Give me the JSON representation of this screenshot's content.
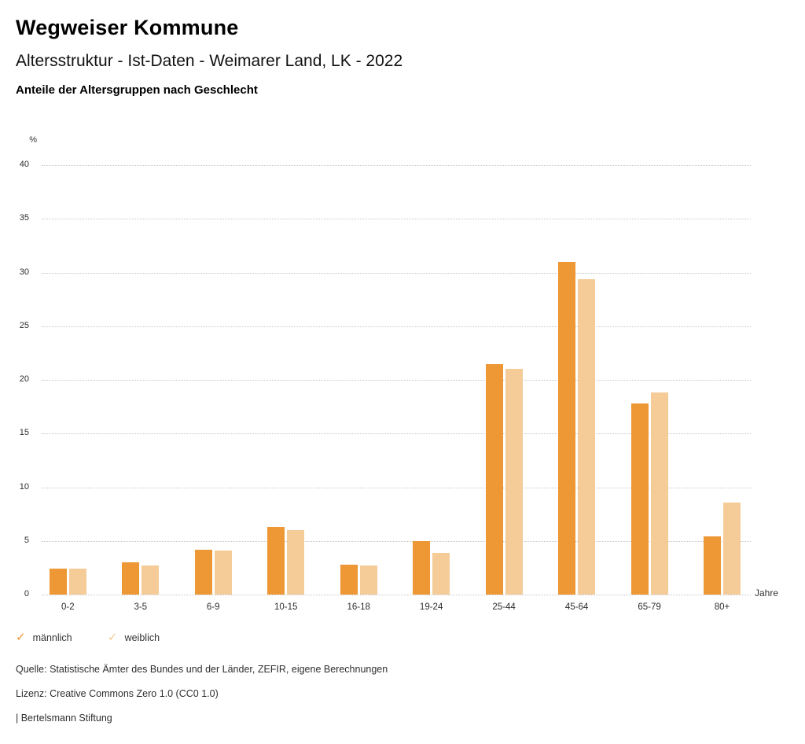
{
  "header": {
    "title": "Wegweiser Kommune",
    "subtitle": "Altersstruktur - Ist-Daten - Weimarer Land, LK - 2022",
    "chart_heading": "Anteile der Altersgruppen nach Geschlecht"
  },
  "chart_data": {
    "type": "bar",
    "title": "Anteile der Altersgruppen nach Geschlecht",
    "categories": [
      "0-2",
      "3-5",
      "6-9",
      "10-15",
      "16-18",
      "19-24",
      "25-44",
      "45-64",
      "65-79",
      "80+"
    ],
    "series": [
      {
        "name": "männlich",
        "color": "#ED9735",
        "values": [
          2.4,
          3.0,
          4.2,
          6.3,
          2.8,
          5.0,
          21.5,
          31.0,
          17.8,
          5.4
        ]
      },
      {
        "name": "weiblich",
        "color": "#F5CB98",
        "values": [
          2.4,
          2.7,
          4.1,
          6.0,
          2.7,
          3.9,
          21.0,
          29.4,
          18.8,
          8.6
        ]
      }
    ],
    "xlabel": "Jahre",
    "ylabel": "%",
    "ylim": [
      0,
      40
    ],
    "ytick_step": 5,
    "grid": true,
    "gridline_color": "#c6c6c6",
    "legend_position": "bottom-left",
    "legend_marker": "check"
  },
  "footer": {
    "source": "Quelle: Statistische Ämter des Bundes und der Länder, ZEFIR, eigene Berechnungen",
    "license": "Lizenz: Creative Commons Zero 1.0 (CC0 1.0)",
    "attribution": "| Bertelsmann Stiftung"
  }
}
